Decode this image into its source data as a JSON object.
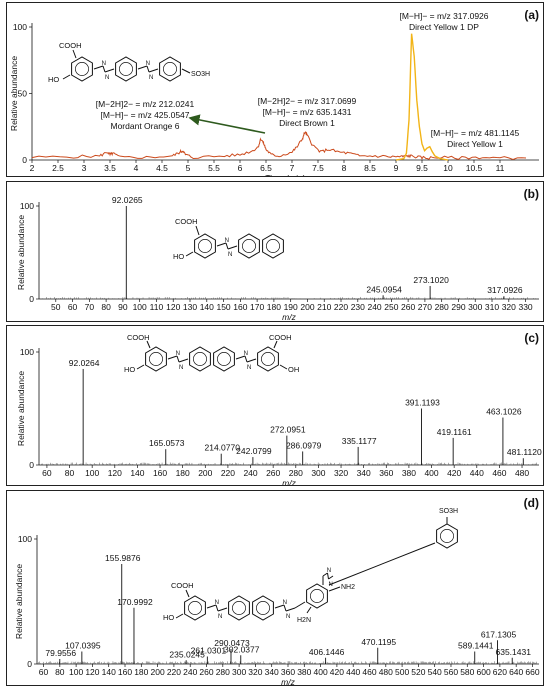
{
  "chart_data": [
    {
      "type": "line",
      "panel_label": "(a)",
      "xlabel": "Time (min)",
      "ylabel": "Relative abundance",
      "xlim": [
        2,
        11.75
      ],
      "ylim": [
        0,
        100
      ],
      "xticks": [
        2,
        2.5,
        3,
        3.5,
        4,
        4.5,
        5,
        5.5,
        6,
        6.5,
        7,
        7.5,
        8,
        8.5,
        9,
        9.5,
        10,
        10.5,
        11
      ],
      "yticks": [
        0,
        50,
        100
      ],
      "series": [
        {
          "color": "#cc4a1c",
          "x": [
            2.0,
            2.8,
            3.3,
            3.45,
            3.5,
            3.55,
            3.7,
            4.2,
            4.7,
            4.85,
            4.9,
            4.95,
            5.1,
            5.7,
            6.0,
            6.25,
            6.35,
            6.4,
            6.45,
            6.5,
            6.6,
            6.75,
            7.0,
            7.1,
            7.2,
            7.25,
            7.3,
            7.4,
            7.55,
            7.7,
            7.9,
            8.1,
            8.3,
            8.6,
            8.9,
            9.1,
            9.2,
            9.3,
            9.45,
            9.6,
            9.8,
            10.2,
            10.6,
            11.0,
            11.5
          ],
          "y": [
            2,
            2.5,
            3,
            6,
            4,
            5,
            2,
            2,
            3,
            6,
            7,
            4,
            2,
            3,
            4,
            7,
            10,
            16,
            13,
            8,
            4,
            3,
            6,
            10,
            16,
            21,
            18,
            11,
            6,
            8,
            6,
            5,
            3,
            3,
            2.5,
            2.5,
            3,
            3,
            2,
            1.5,
            2,
            1.5,
            2,
            1.5,
            1.5
          ]
        },
        {
          "color": "#f2b417",
          "x": [
            9.0,
            9.15,
            9.2,
            9.25,
            9.3,
            9.35,
            9.4,
            9.45,
            9.5,
            9.55,
            9.6,
            9.65,
            9.7,
            9.75,
            9.85,
            10.0
          ],
          "y": [
            0,
            1,
            5,
            30,
            95,
            78,
            45,
            25,
            12,
            7,
            9,
            10,
            6,
            3,
            1,
            0
          ]
        }
      ],
      "annotations": [
        {
          "lines": [
            "[M−2H]2− = m/z 212.0241",
            "[M−H]− = m/z 425.0547",
            "Mordant Orange 6"
          ]
        },
        {
          "lines": [
            "[M−2H]2− = m/z 317.0699",
            "[M−H]− = m/z 635.1431",
            "Direct Brown 1"
          ]
        },
        {
          "lines": [
            "[M−H]− = m/z 317.0926",
            "Direct Yellow 1 DP"
          ]
        },
        {
          "lines": [
            "[M−H]− = m/z 481.1145",
            "Direct Yellow 1"
          ]
        }
      ],
      "structure_labels": [
        "COOH",
        "HO",
        "SO3H"
      ]
    },
    {
      "type": "bar",
      "panel_label": "(b)",
      "xlabel": "m/z",
      "ylabel": "Relative abundance",
      "xlim": [
        40,
        338
      ],
      "ylim": [
        0,
        100
      ],
      "xticks": [
        50,
        60,
        70,
        80,
        90,
        100,
        110,
        120,
        130,
        140,
        150,
        160,
        170,
        180,
        190,
        200,
        210,
        220,
        230,
        240,
        250,
        260,
        270,
        280,
        290,
        300,
        310,
        320,
        330
      ],
      "yticks": [
        0,
        100
      ],
      "peaks": [
        {
          "mz": 92.0265,
          "label": "92.0265",
          "value": 100
        },
        {
          "mz": 245.0954,
          "label": "245.0954",
          "value": 4
        },
        {
          "mz": 273.102,
          "label": "273.1020",
          "value": 14
        },
        {
          "mz": 317.0926,
          "label": "317.0926",
          "value": 3
        }
      ],
      "noise_seed": 3,
      "structure_labels": [
        "COOH",
        "HO"
      ]
    },
    {
      "type": "bar",
      "panel_label": "(c)",
      "xlabel": "m/z",
      "ylabel": "Relative abundance",
      "xlim": [
        53,
        495
      ],
      "ylim": [
        0,
        100
      ],
      "xticks": [
        60,
        80,
        100,
        120,
        140,
        160,
        180,
        200,
        220,
        240,
        260,
        280,
        300,
        320,
        340,
        360,
        380,
        400,
        420,
        440,
        460,
        480
      ],
      "yticks": [
        0,
        100
      ],
      "peaks": [
        {
          "mz": 92.0264,
          "label": "92.0264",
          "value": 85
        },
        {
          "mz": 165.0573,
          "label": "165.0573",
          "value": 14
        },
        {
          "mz": 214.077,
          "label": "214.0770",
          "value": 10
        },
        {
          "mz": 242.0799,
          "label": "242.0799",
          "value": 7
        },
        {
          "mz": 272.0951,
          "label": "272.0951",
          "value": 26
        },
        {
          "mz": 286.0979,
          "label": "286.0979",
          "value": 12
        },
        {
          "mz": 335.1177,
          "label": "335.1177",
          "value": 16
        },
        {
          "mz": 391.1193,
          "label": "391.1193",
          "value": 50
        },
        {
          "mz": 419.1161,
          "label": "419.1161",
          "value": 24
        },
        {
          "mz": 463.1026,
          "label": "463.1026",
          "value": 42
        },
        {
          "mz": 481.112,
          "label": "481.1120",
          "value": 6
        }
      ],
      "noise_seed": 7,
      "structure_labels": [
        "COOH",
        "HO",
        "COOH",
        "OH"
      ]
    },
    {
      "type": "bar",
      "panel_label": "(d)",
      "xlabel": "m/z",
      "ylabel": "Relative abundance",
      "xlim": [
        52,
        668
      ],
      "ylim": [
        0,
        100
      ],
      "xticks": [
        60,
        80,
        100,
        120,
        140,
        160,
        180,
        200,
        220,
        240,
        260,
        280,
        300,
        320,
        340,
        360,
        380,
        400,
        420,
        440,
        460,
        480,
        500,
        520,
        540,
        560,
        580,
        600,
        620,
        640,
        660
      ],
      "yticks": [
        0,
        100
      ],
      "peaks": [
        {
          "mz": 79.9556,
          "label": "79.9556",
          "value": 4
        },
        {
          "mz": 107.0395,
          "label": "107.0395",
          "value": 10
        },
        {
          "mz": 155.9876,
          "label": "155.9876",
          "value": 80
        },
        {
          "mz": 170.9992,
          "label": "170.9992",
          "value": 45
        },
        {
          "mz": 235.0245,
          "label": "235.0245",
          "value": 3
        },
        {
          "mz": 261.0301,
          "label": "261.0301",
          "value": 6
        },
        {
          "mz": 290.0473,
          "label": "290.0473",
          "value": 12
        },
        {
          "mz": 302.0377,
          "label": "302.0377",
          "value": 7
        },
        {
          "mz": 406.1446,
          "label": "406.1446",
          "value": 5
        },
        {
          "mz": 470.1195,
          "label": "470.1195",
          "value": 13
        },
        {
          "mz": 589.1441,
          "label": "589.1441",
          "value": 10
        },
        {
          "mz": 617.1305,
          "label": "617.1305",
          "value": 19
        },
        {
          "mz": 635.1431,
          "label": "635.1431",
          "value": 5
        }
      ],
      "noise_seed": 11,
      "structure_labels": [
        "SO3H",
        "NH2",
        "H2N",
        "COOH",
        "HO"
      ]
    }
  ]
}
